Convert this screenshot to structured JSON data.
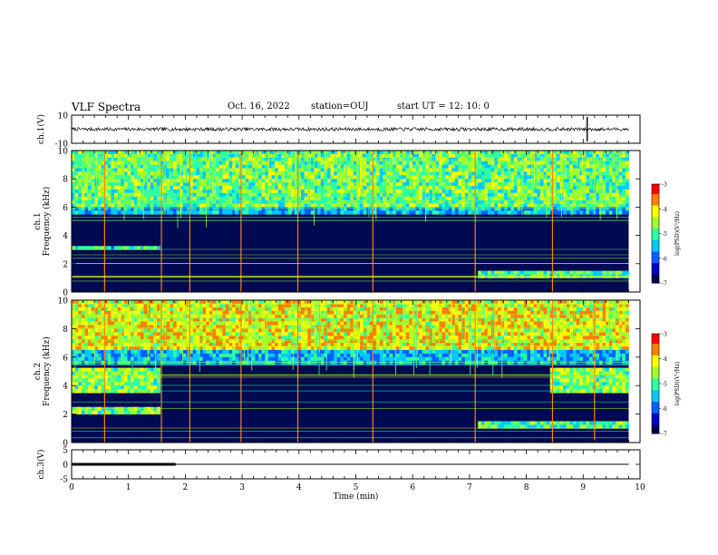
{
  "header": {
    "title": "VLF Spectra",
    "date": "Oct. 16, 2022",
    "station": "station=OUJ",
    "start": "start  UT =   12: 10: 0"
  },
  "colors": {
    "background": "#ffffff",
    "axes": "#000000",
    "spectrogram_background": "#000a50",
    "colormap": [
      "#000050",
      "#0000c8",
      "#0060ff",
      "#00c8ff",
      "#30ffa0",
      "#a0ff30",
      "#ffff00",
      "#ff8000",
      "#ff0000",
      "#ffffff"
    ]
  },
  "chart_data": [
    {
      "type": "line",
      "name": "ch1-waveform",
      "ylabel": "ch.1(V)",
      "ylim": [
        -10,
        10
      ],
      "yticks": [
        "10",
        "-10"
      ],
      "xlim": [
        0,
        9.8
      ],
      "trace_level": 0,
      "trace_amplitude": 1.2,
      "markers_x": [
        9.07
      ]
    },
    {
      "type": "heatmap",
      "name": "ch1-spectrogram",
      "ylabel": "ch.1\nFrequency (kHz)",
      "ylim": [
        0,
        10
      ],
      "yticks": [
        "0",
        "2",
        "4",
        "6",
        "8",
        "10"
      ],
      "xlim": [
        0,
        9.8
      ],
      "colorbar": {
        "label": "log(PSD)(V²/Hz)",
        "range": [
          -7,
          -3
        ],
        "ticks": [
          "-3",
          "-4",
          "-5",
          "-6",
          "-7"
        ]
      },
      "bands": [
        {
          "from_kHz": 6.0,
          "to_kHz": 10.0,
          "level": 0.55
        },
        {
          "from_kHz": 3.0,
          "to_kHz": 3.3,
          "level": 0.45,
          "x_end": 1.55
        },
        {
          "from_kHz": 1.1,
          "to_kHz": 1.5,
          "level": 0.5,
          "x_start": 7.1
        }
      ],
      "strong_lines_x": [
        0.58,
        1.58,
        2.08,
        2.98,
        3.98,
        5.3,
        7.1,
        8.46
      ]
    },
    {
      "type": "heatmap",
      "name": "ch2-spectrogram",
      "ylabel": "ch.2\nFrequency (kHz)",
      "ylim": [
        0,
        10
      ],
      "yticks": [
        "0",
        "2",
        "4",
        "6",
        "8",
        "10"
      ],
      "xlim": [
        0,
        9.8
      ],
      "colorbar": {
        "label": "log(PSD)(V²/Hz)",
        "range": [
          -7,
          -3
        ],
        "ticks": [
          "-3",
          "-4",
          "-5",
          "-6",
          "-7"
        ]
      },
      "bands": [
        {
          "from_kHz": 6.5,
          "to_kHz": 10.0,
          "level": 0.7
        },
        {
          "from_kHz": 3.5,
          "to_kHz": 5.3,
          "level": 0.6,
          "x_end": 1.55
        },
        {
          "from_kHz": 3.5,
          "to_kHz": 5.3,
          "level": 0.6,
          "x_start": 8.4
        },
        {
          "from_kHz": 2.0,
          "to_kHz": 2.6,
          "level": 0.55,
          "x_end": 1.55
        },
        {
          "from_kHz": 1.1,
          "to_kHz": 1.5,
          "level": 0.5,
          "x_start": 7.1
        }
      ],
      "strong_lines_x": [
        0.58,
        1.58,
        2.08,
        2.98,
        3.98,
        5.3,
        7.1,
        8.46,
        9.2
      ]
    },
    {
      "type": "line",
      "name": "ch3-waveform",
      "ylabel": "ch.3(V)",
      "ylim": [
        -5,
        5
      ],
      "yticks": [
        "5",
        "0",
        "-5"
      ],
      "xlim": [
        0,
        9.8
      ],
      "trace_level": 0,
      "thick_until_x": 1.83
    }
  ],
  "xaxis": {
    "label": "Time (min)",
    "range": [
      0,
      10
    ],
    "ticks": [
      "0",
      "1",
      "2",
      "3",
      "4",
      "5",
      "6",
      "7",
      "8",
      "9",
      "10"
    ]
  }
}
